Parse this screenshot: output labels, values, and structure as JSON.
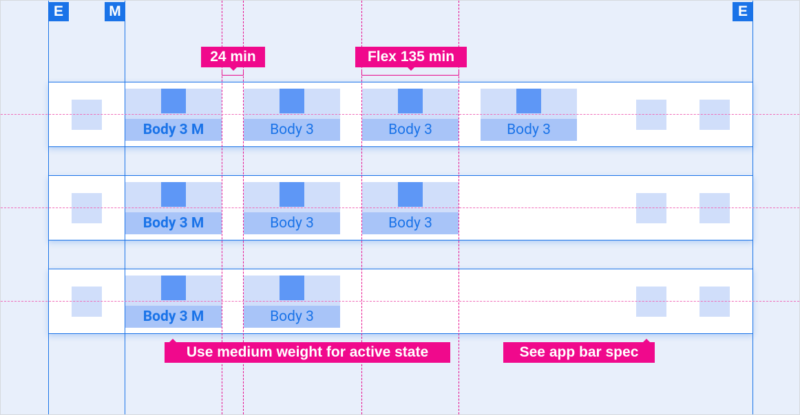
{
  "badges": {
    "edge_left": "E",
    "margin": "M",
    "edge_right": "E"
  },
  "annotations": {
    "min_gap": "24 min",
    "flex": "Flex 135 min",
    "active_note": "Use medium weight for active state",
    "app_bar_note": "See app bar spec"
  },
  "rows": [
    {
      "tabs": [
        {
          "label": "Body 3 M",
          "active": true
        },
        {
          "label": "Body 3"
        },
        {
          "label": "Body 3"
        },
        {
          "label": "Body 3"
        }
      ]
    },
    {
      "tabs": [
        {
          "label": "Body 3 M",
          "active": true
        },
        {
          "label": "Body 3"
        },
        {
          "label": "Body 3"
        }
      ]
    },
    {
      "tabs": [
        {
          "label": "Body 3 M",
          "active": true
        },
        {
          "label": "Body 3"
        }
      ]
    }
  ],
  "colors": {
    "background": "#e8effb",
    "guide_blue": "#1a73e8",
    "annotation_pink": "#f0098c",
    "tab_light": "#d0defa",
    "tab_label_bg": "#a8c4f8",
    "icon": "#5e97f6"
  }
}
